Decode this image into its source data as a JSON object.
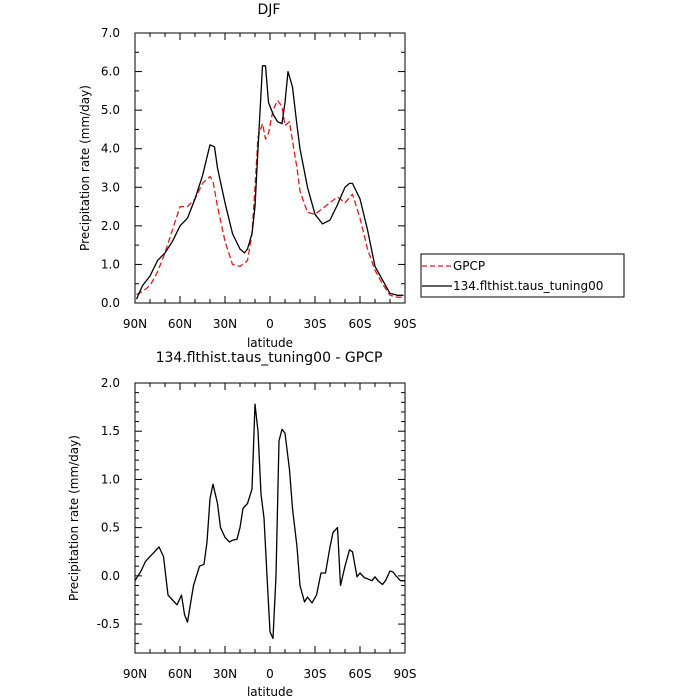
{
  "chart_data": [
    {
      "type": "line",
      "title": "DJF",
      "xlabel": "latitude",
      "ylabel": "Precipitation rate (mm/day)",
      "xlim": [
        -90,
        90
      ],
      "ylim": [
        0,
        7
      ],
      "x_direction": "north-to-south",
      "x_tick_values": [
        -90,
        -60,
        -30,
        0,
        30,
        60,
        90
      ],
      "x_tick_labels": [
        "90N",
        "60N",
        "30N",
        "0",
        "30S",
        "60S",
        "90S"
      ],
      "y_tick_values": [
        0,
        1,
        2,
        3,
        4,
        5,
        6,
        7
      ],
      "y_tick_labels": [
        "0.0",
        "1.0",
        "2.0",
        "3.0",
        "4.0",
        "5.0",
        "6.0",
        "7.0"
      ],
      "legend": {
        "placement": "right"
      },
      "series": [
        {
          "name": "GPCP",
          "color": "#e41a1c",
          "dash": "dashed",
          "x": [
            -89,
            -85,
            -80,
            -75,
            -70,
            -65,
            -60,
            -55,
            -50,
            -45,
            -40,
            -38,
            -35,
            -30,
            -25,
            -20,
            -15,
            -12,
            -10,
            -8,
            -5,
            -3,
            -1,
            2,
            5,
            8,
            10,
            13,
            15,
            18,
            20,
            25,
            30,
            35,
            40,
            45,
            50,
            55,
            60,
            65,
            70,
            75,
            80,
            85,
            89
          ],
          "y": [
            0.22,
            0.3,
            0.45,
            0.8,
            1.3,
            1.9,
            2.5,
            2.5,
            2.7,
            3.1,
            3.28,
            3.15,
            2.5,
            1.6,
            1.0,
            0.95,
            1.1,
            1.8,
            3.0,
            4.3,
            4.65,
            4.25,
            4.4,
            5.0,
            5.25,
            5.1,
            4.6,
            4.7,
            4.2,
            3.5,
            2.9,
            2.35,
            2.3,
            2.45,
            2.6,
            2.75,
            2.6,
            2.82,
            2.2,
            1.4,
            0.85,
            0.5,
            0.2,
            0.15,
            0.15
          ]
        },
        {
          "name": "134.flthist.taus_tuning00",
          "color": "#000000",
          "dash": "solid",
          "x": [
            -89,
            -85,
            -80,
            -75,
            -70,
            -65,
            -60,
            -55,
            -50,
            -45,
            -40,
            -37,
            -35,
            -30,
            -25,
            -20,
            -17,
            -15,
            -12,
            -10,
            -8,
            -5,
            -3,
            -1,
            2,
            5,
            8,
            10,
            12,
            15,
            18,
            20,
            25,
            30,
            35,
            40,
            45,
            50,
            53,
            55,
            60,
            65,
            70,
            75,
            80,
            85,
            89
          ],
          "y": [
            0.1,
            0.45,
            0.7,
            1.1,
            1.3,
            1.6,
            2.0,
            2.2,
            2.7,
            3.3,
            4.1,
            4.05,
            3.5,
            2.6,
            1.8,
            1.4,
            1.3,
            1.4,
            1.8,
            2.5,
            4.0,
            6.15,
            6.15,
            5.2,
            4.9,
            4.7,
            4.65,
            5.2,
            6.0,
            5.6,
            4.6,
            4.0,
            3.0,
            2.3,
            2.05,
            2.15,
            2.55,
            3.0,
            3.1,
            3.1,
            2.7,
            1.9,
            0.95,
            0.6,
            0.25,
            0.2,
            0.2
          ]
        }
      ]
    },
    {
      "type": "line",
      "title": "134.flthist.taus_tuning00 - GPCP",
      "xlabel": "latitude",
      "ylabel": "Precipitation rate (mm/day)",
      "xlim": [
        -90,
        90
      ],
      "ylim": [
        -0.8,
        2.0
      ],
      "x_direction": "north-to-south",
      "x_tick_values": [
        -90,
        -60,
        -30,
        0,
        30,
        60,
        90
      ],
      "x_tick_labels": [
        "90N",
        "60N",
        "30N",
        "0",
        "30S",
        "60S",
        "90S"
      ],
      "y_tick_values": [
        -0.5,
        0.0,
        0.5,
        1.0,
        1.5,
        2.0
      ],
      "y_tick_labels": [
        "-0.5",
        "0.0",
        "0.5",
        "1.0",
        "1.5",
        "2.0"
      ],
      "series": [
        {
          "color": "#000000",
          "dash": "solid",
          "x": [
            -90,
            -86,
            -83,
            -80,
            -77,
            -74,
            -71,
            -68,
            -65,
            -62,
            -59,
            -57,
            -55,
            -51,
            -47,
            -44,
            -42,
            -40,
            -38,
            -35,
            -33,
            -30,
            -27,
            -25,
            -22,
            -20,
            -18,
            -15,
            -12,
            -10,
            -8,
            -6,
            -4,
            -2,
            0,
            2,
            4,
            6,
            8,
            10,
            13,
            15,
            18,
            20,
            23,
            25,
            28,
            31,
            34,
            37,
            40,
            42,
            45,
            47,
            50,
            53,
            55,
            58,
            60,
            63,
            65,
            68,
            70,
            72,
            75,
            77,
            80,
            82,
            84,
            87,
            90
          ],
          "y": [
            -0.05,
            0.05,
            0.15,
            0.2,
            0.25,
            0.3,
            0.2,
            -0.2,
            -0.25,
            -0.3,
            -0.2,
            -0.4,
            -0.48,
            -0.1,
            0.1,
            0.12,
            0.35,
            0.8,
            0.95,
            0.75,
            0.5,
            0.4,
            0.35,
            0.37,
            0.38,
            0.5,
            0.7,
            0.75,
            0.9,
            1.78,
            1.5,
            0.85,
            0.6,
            0.0,
            -0.58,
            -0.65,
            0.0,
            1.4,
            1.52,
            1.48,
            1.1,
            0.7,
            0.3,
            -0.1,
            -0.27,
            -0.22,
            -0.28,
            -0.2,
            0.03,
            0.03,
            0.3,
            0.45,
            0.5,
            -0.1,
            0.1,
            0.27,
            0.25,
            -0.01,
            0.03,
            -0.02,
            -0.03,
            -0.05,
            -0.01,
            -0.05,
            -0.09,
            -0.05,
            0.05,
            0.04,
            0.0,
            -0.05,
            -0.05
          ]
        }
      ]
    }
  ]
}
